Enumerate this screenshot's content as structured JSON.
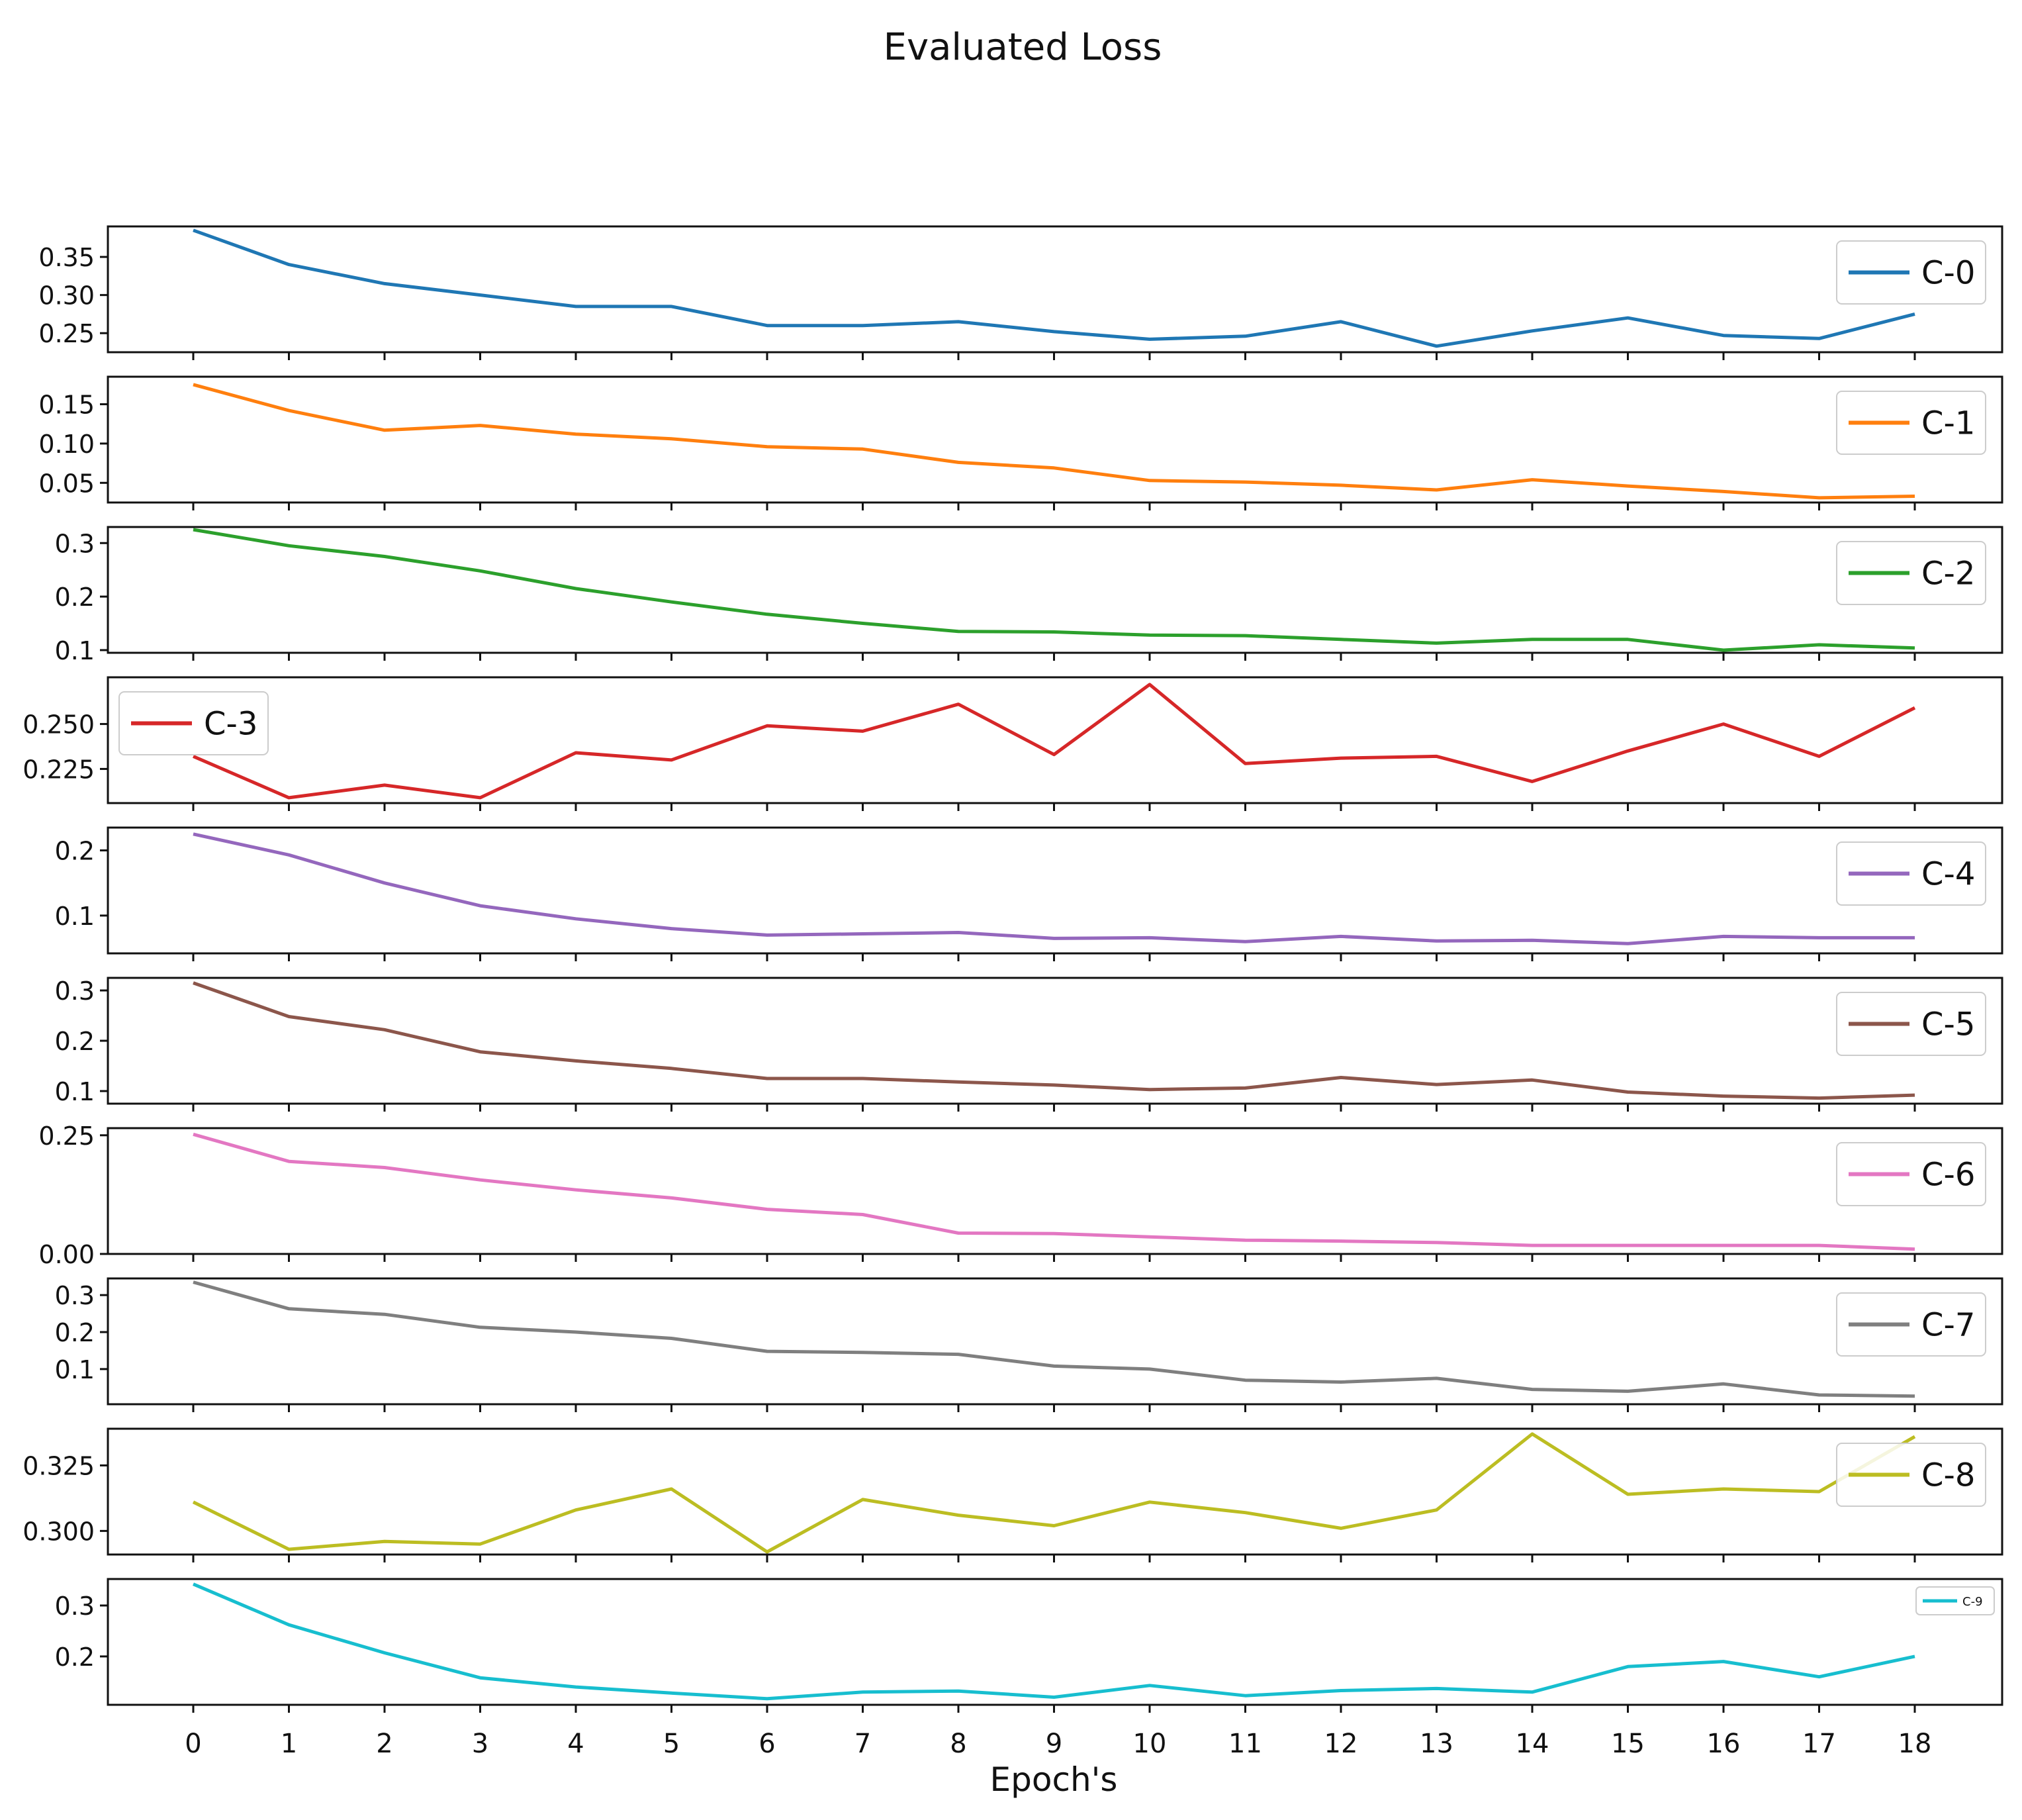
{
  "chart_data": {
    "type": "line",
    "title": "Evaluated Loss",
    "xlabel": "Epoch's",
    "x": [
      0,
      1,
      2,
      3,
      4,
      5,
      6,
      7,
      8,
      9,
      10,
      11,
      12,
      13,
      14,
      15,
      16,
      17,
      18
    ],
    "x_ticks": [
      "0",
      "1",
      "2",
      "3",
      "4",
      "5",
      "6",
      "7",
      "8",
      "9",
      "10",
      "11",
      "12",
      "13",
      "14",
      "15",
      "16",
      "17",
      "18"
    ],
    "panels": [
      {
        "name": "C-0",
        "color": "#1f77b4",
        "legend": "right",
        "ylim": [
          0.225,
          0.39
        ],
        "yticks": [
          0.25,
          0.3,
          0.35
        ],
        "ytick_labels": [
          "0.25",
          "0.30",
          "0.35"
        ],
        "values": [
          0.385,
          0.34,
          0.315,
          0.3,
          0.285,
          0.285,
          0.26,
          0.26,
          0.265,
          0.252,
          0.242,
          0.246,
          0.265,
          0.233,
          0.253,
          0.27,
          0.247,
          0.243,
          0.275
        ]
      },
      {
        "name": "C-1",
        "color": "#ff7f0e",
        "legend": "right",
        "ylim": [
          0.025,
          0.185
        ],
        "yticks": [
          0.05,
          0.1,
          0.15
        ],
        "ytick_labels": [
          "0.05",
          "0.10",
          "0.15"
        ],
        "values": [
          0.175,
          0.142,
          0.117,
          0.123,
          0.112,
          0.106,
          0.096,
          0.093,
          0.076,
          0.069,
          0.053,
          0.051,
          0.047,
          0.041,
          0.054,
          0.046,
          0.039,
          0.031,
          0.033
        ]
      },
      {
        "name": "C-2",
        "color": "#2ca02c",
        "legend": "right",
        "ylim": [
          0.095,
          0.33
        ],
        "yticks": [
          0.1,
          0.2,
          0.3
        ],
        "ytick_labels": [
          "0.1",
          "0.2",
          "0.3"
        ],
        "values": [
          0.325,
          0.295,
          0.275,
          0.248,
          0.215,
          0.19,
          0.167,
          0.15,
          0.135,
          0.134,
          0.128,
          0.127,
          0.12,
          0.113,
          0.12,
          0.12,
          0.1,
          0.11,
          0.104
        ]
      },
      {
        "name": "C-3",
        "color": "#d62728",
        "legend": "left",
        "ylim": [
          0.206,
          0.276
        ],
        "yticks": [
          0.225,
          0.25
        ],
        "ytick_labels": [
          "0.225",
          "0.250"
        ],
        "values": [
          0.232,
          0.209,
          0.216,
          0.209,
          0.234,
          0.23,
          0.249,
          0.246,
          0.261,
          0.233,
          0.272,
          0.228,
          0.231,
          0.232,
          0.218,
          0.235,
          0.25,
          0.232,
          0.259
        ]
      },
      {
        "name": "C-4",
        "color": "#9467bd",
        "legend": "right",
        "ylim": [
          0.042,
          0.235
        ],
        "yticks": [
          0.1,
          0.2
        ],
        "ytick_labels": [
          "0.1",
          "0.2"
        ],
        "values": [
          0.225,
          0.193,
          0.15,
          0.115,
          0.095,
          0.08,
          0.07,
          0.072,
          0.074,
          0.065,
          0.066,
          0.06,
          0.068,
          0.061,
          0.062,
          0.057,
          0.068,
          0.066,
          0.066
        ]
      },
      {
        "name": "C-5",
        "color": "#8c564b",
        "legend": "right",
        "ylim": [
          0.075,
          0.325
        ],
        "yticks": [
          0.1,
          0.2,
          0.3
        ],
        "ytick_labels": [
          "0.1",
          "0.2",
          "0.3"
        ],
        "values": [
          0.315,
          0.248,
          0.222,
          0.178,
          0.16,
          0.145,
          0.125,
          0.125,
          0.118,
          0.112,
          0.103,
          0.106,
          0.127,
          0.113,
          0.122,
          0.098,
          0.09,
          0.086,
          0.092
        ]
      },
      {
        "name": "C-6",
        "color": "#e377c2",
        "legend": "right",
        "ylim": [
          0.0,
          0.265
        ],
        "yticks": [
          0.0,
          0.25
        ],
        "ytick_labels": [
          "0.00",
          "0.25"
        ],
        "values": [
          0.252,
          0.195,
          0.182,
          0.156,
          0.135,
          0.118,
          0.094,
          0.083,
          0.044,
          0.043,
          0.036,
          0.029,
          0.027,
          0.024,
          0.018,
          0.018,
          0.018,
          0.018,
          0.01
        ]
      },
      {
        "name": "C-7",
        "color": "#7f7f7f",
        "legend": "right",
        "ylim": [
          0.005,
          0.345
        ],
        "yticks": [
          0.1,
          0.2,
          0.3
        ],
        "ytick_labels": [
          "0.1",
          "0.2",
          "0.3"
        ],
        "values": [
          0.335,
          0.263,
          0.248,
          0.213,
          0.2,
          0.183,
          0.148,
          0.145,
          0.14,
          0.108,
          0.1,
          0.07,
          0.065,
          0.075,
          0.045,
          0.04,
          0.06,
          0.03,
          0.027
        ]
      },
      {
        "name": "C-8",
        "color": "#bcbd22",
        "legend": "right",
        "ylim": [
          0.291,
          0.339
        ],
        "yticks": [
          0.3,
          0.325
        ],
        "ytick_labels": [
          "0.300",
          "0.325"
        ],
        "values": [
          0.311,
          0.293,
          0.296,
          0.295,
          0.308,
          0.316,
          0.292,
          0.312,
          0.306,
          0.302,
          0.311,
          0.307,
          0.301,
          0.308,
          0.337,
          0.314,
          0.316,
          0.315,
          0.336
        ]
      },
      {
        "name": "C-9",
        "color": "#17becf",
        "legend": "right-small",
        "ylim": [
          0.105,
          0.352
        ],
        "yticks": [
          0.2,
          0.3
        ],
        "ytick_labels": [
          "0.2",
          "0.3"
        ],
        "values": [
          0.342,
          0.262,
          0.207,
          0.158,
          0.14,
          0.128,
          0.117,
          0.13,
          0.132,
          0.12,
          0.143,
          0.123,
          0.133,
          0.137,
          0.13,
          0.18,
          0.19,
          0.16,
          0.2
        ]
      }
    ]
  }
}
